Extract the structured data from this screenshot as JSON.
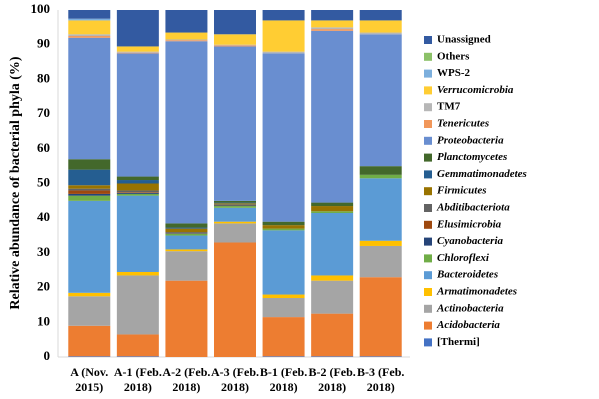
{
  "chart_data": {
    "type": "stacked_bar",
    "y_label": "Relative abundance of bacterial phyla (%)",
    "categories": [
      "A (Nov. 2015)",
      "A-1 (Feb. 2018)",
      "A-2 (Feb. 2018)",
      "A-3 (Feb. 2018)",
      "B-1 (Feb. 2018)",
      "B-2 (Feb. 2018)",
      "B-3 (Feb. 2018)"
    ],
    "ylim": [
      0,
      100
    ],
    "yticks": [
      0,
      10,
      20,
      30,
      40,
      50,
      60,
      70,
      80,
      90,
      100
    ],
    "grid": false,
    "legend": "right",
    "series": [
      {
        "name": "[Thermi]",
        "color": "#4472c4",
        "italic": false,
        "values": [
          0.2,
          0.2,
          0,
          0,
          0.2,
          0.2,
          0.2
        ]
      },
      {
        "name": "Acidobacteria",
        "color": "#ed7d31",
        "italic": true,
        "values": [
          8.8,
          6.3,
          22,
          33,
          11.3,
          12.3,
          22.8
        ]
      },
      {
        "name": "Actinobacteria",
        "color": "#a5a5a5",
        "italic": true,
        "values": [
          8.5,
          17,
          8.5,
          5.5,
          5.5,
          9.5,
          9
        ]
      },
      {
        "name": "Armatimonadetes",
        "color": "#ffc000",
        "italic": true,
        "values": [
          1,
          1,
          0.5,
          0.5,
          1,
          1.5,
          1.5
        ]
      },
      {
        "name": "Bacteroidetes",
        "color": "#5b9bd5",
        "italic": true,
        "values": [
          26.5,
          22,
          4,
          4,
          18.5,
          18,
          18
        ]
      },
      {
        "name": "Chloroflexi",
        "color": "#70ad47",
        "italic": true,
        "values": [
          1.5,
          0.5,
          0.5,
          0.5,
          0.5,
          0.5,
          1
        ]
      },
      {
        "name": "Cyanobacteria",
        "color": "#264478",
        "italic": true,
        "values": [
          0.5,
          0.3,
          0,
          0,
          0,
          0,
          0
        ]
      },
      {
        "name": "Elusimicrobia",
        "color": "#9e480e",
        "italic": true,
        "values": [
          1,
          0.2,
          0,
          0,
          0,
          0,
          0
        ]
      },
      {
        "name": "Abditibacteriota",
        "color": "#636363",
        "italic": true,
        "values": [
          0.5,
          0.5,
          0.5,
          0.5,
          0,
          0,
          0
        ]
      },
      {
        "name": "Firmicutes",
        "color": "#997300",
        "italic": true,
        "values": [
          1,
          2,
          1,
          0.3,
          1,
          1.5,
          0
        ]
      },
      {
        "name": "Gemmatimonadetes",
        "color": "#255e91",
        "italic": true,
        "values": [
          4.5,
          1,
          0.3,
          0.2,
          0,
          0,
          0
        ]
      },
      {
        "name": "Planctomycetes",
        "color": "#43682b",
        "italic": true,
        "values": [
          3,
          1,
          1.2,
          0.5,
          1,
          1,
          2.5
        ]
      },
      {
        "name": "Proteobacteria",
        "color": "#698ed0",
        "italic": true,
        "values": [
          35,
          35.5,
          52.5,
          44.5,
          48.5,
          49.5,
          38
        ]
      },
      {
        "name": "Tenericutes",
        "color": "#f1975a",
        "italic": true,
        "values": [
          0.5,
          0.2,
          0.3,
          0.3,
          0,
          0.5,
          0
        ]
      },
      {
        "name": "TM7",
        "color": "#b7b7b7",
        "italic": false,
        "values": [
          0.5,
          0.3,
          0.2,
          0.2,
          0.5,
          0.5,
          0.5
        ]
      },
      {
        "name": "Verrucomicrobia",
        "color": "#ffcd33",
        "italic": true,
        "values": [
          4,
          1.5,
          2,
          3,
          9,
          2,
          3.5
        ]
      },
      {
        "name": "WPS-2",
        "color": "#7cafdd",
        "italic": false,
        "values": [
          0.5,
          0,
          0,
          0,
          0,
          0,
          0
        ]
      },
      {
        "name": "Others",
        "color": "#8cc168",
        "italic": false,
        "values": [
          0,
          0,
          0,
          0,
          0,
          0,
          0
        ]
      },
      {
        "name": "Unassigned",
        "color": "#335aa1",
        "italic": false,
        "values": [
          2.5,
          10.5,
          6.5,
          7,
          3,
          3,
          3
        ]
      }
    ]
  }
}
